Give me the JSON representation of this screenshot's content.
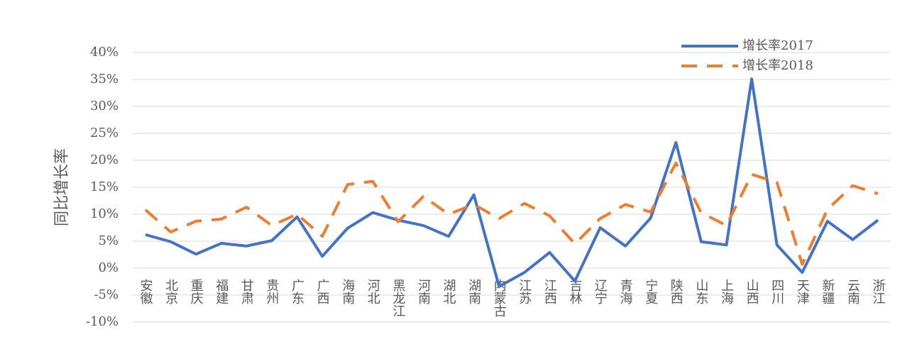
{
  "chart_data": {
    "type": "line",
    "y_axis_label": "同比增长率",
    "categories": [
      "安徽",
      "北京",
      "重庆",
      "福建",
      "甘肃",
      "贵州",
      "广东",
      "广西",
      "海南",
      "河北",
      "黑龙江",
      "河南",
      "湖北",
      "湖南",
      "内蒙古",
      "江苏",
      "江西",
      "吉林",
      "辽宁",
      "青海",
      "宁夏",
      "陕西",
      "山东",
      "上海",
      "山西",
      "四川",
      "天津",
      "新疆",
      "云南",
      "浙江"
    ],
    "series": [
      {
        "name": "增长率2017",
        "color": "#4472c4",
        "dash": false,
        "values": [
          6.2,
          4.9,
          2.6,
          4.6,
          4.1,
          5.1,
          9.5,
          2.2,
          7.4,
          10.3,
          8.9,
          7.9,
          5.9,
          13.6,
          -3.4,
          -0.8,
          2.9,
          -2.4,
          7.5,
          4.1,
          9.3,
          23.3,
          4.9,
          4.3,
          35.1,
          4.3,
          -0.8,
          8.7,
          5.3,
          8.9
        ]
      },
      {
        "name": "增长率2018",
        "color": "#ed7d31",
        "dash": true,
        "values": [
          10.8,
          6.7,
          8.7,
          9.1,
          11.3,
          7.9,
          10.0,
          5.9,
          15.5,
          16.1,
          8.6,
          13.3,
          10.0,
          11.8,
          9.2,
          12.0,
          9.7,
          4.5,
          9.2,
          11.8,
          10.4,
          19.5,
          10.3,
          7.9,
          17.4,
          15.9,
          0.7,
          10.9,
          15.3,
          13.8
        ]
      }
    ],
    "ylim": [
      -10,
      40
    ],
    "yticks": [
      {
        "value": -10,
        "label": "-10%"
      },
      {
        "value": -5,
        "label": "-5%"
      },
      {
        "value": 0,
        "label": "0%"
      },
      {
        "value": 5,
        "label": "5%"
      },
      {
        "value": 10,
        "label": "10%"
      },
      {
        "value": 15,
        "label": "15%"
      },
      {
        "value": 20,
        "label": "20%"
      },
      {
        "value": 25,
        "label": "25%"
      },
      {
        "value": 30,
        "label": "30%"
      },
      {
        "value": 35,
        "label": "35%"
      },
      {
        "value": 40,
        "label": "40%"
      }
    ],
    "grid": true
  }
}
